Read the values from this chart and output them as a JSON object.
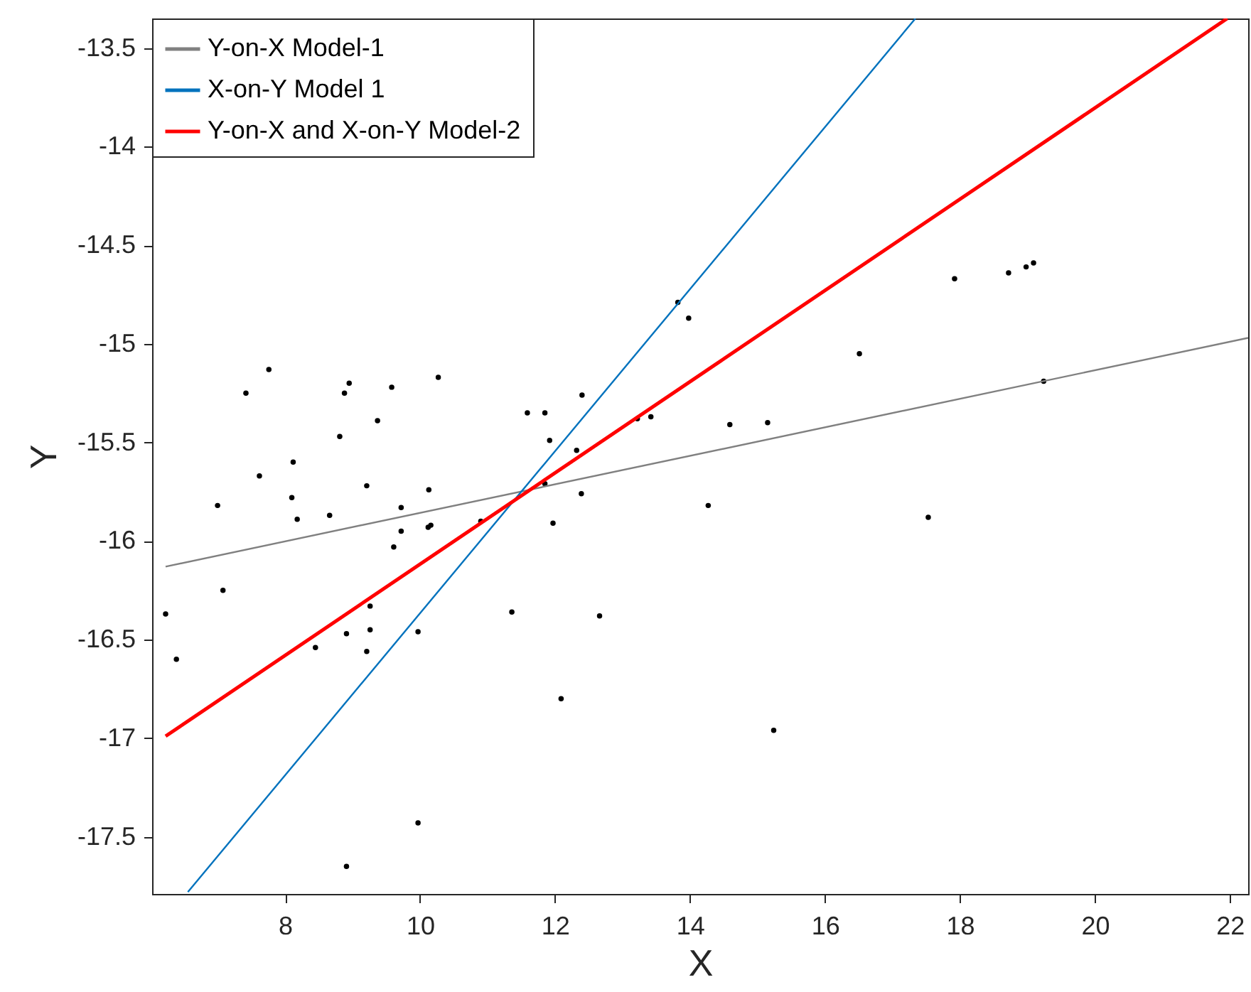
{
  "chart_data": {
    "type": "scatter",
    "xlabel": "X",
    "ylabel": "Y",
    "xlim": [
      6.03,
      22.27
    ],
    "ylim": [
      -17.79,
      -13.35
    ],
    "xticks": [
      8,
      10,
      12,
      14,
      16,
      18,
      20,
      22
    ],
    "yticks": [
      -17.5,
      -17,
      -16.5,
      -16,
      -15.5,
      -15,
      -14.5,
      -14,
      -13.5
    ],
    "legend": "top left",
    "series": [
      {
        "type": "scatter",
        "marker": "circle",
        "color": "#000000",
        "x": [
          6.23,
          6.39,
          7.0,
          7.08,
          7.42,
          7.76,
          7.62,
          8.12,
          8.1,
          8.18,
          8.45,
          8.66,
          8.81,
          8.88,
          8.95,
          8.91,
          9.21,
          9.26,
          9.26,
          9.21,
          9.37,
          9.58,
          9.72,
          9.72,
          9.61,
          9.97,
          10.13,
          10.12,
          10.16,
          10.27,
          10.9,
          11.36,
          11.59,
          11.85,
          11.85,
          11.92,
          11.97,
          12.32,
          12.4,
          12.39,
          12.66,
          13.22,
          13.42,
          13.82,
          13.98,
          14.27,
          14.59,
          15.15,
          16.51,
          17.53,
          17.92,
          18.72,
          18.98,
          19.09,
          19.24,
          12.09,
          9.97,
          8.91,
          15.24
        ],
        "values": [
          -16.37,
          -16.6,
          -15.82,
          -16.25,
          -15.25,
          -15.13,
          -15.67,
          -15.6,
          -15.78,
          -15.89,
          -16.54,
          -15.87,
          -15.47,
          -15.25,
          -15.2,
          -16.47,
          -15.72,
          -16.33,
          -16.45,
          -16.56,
          -15.39,
          -15.22,
          -15.83,
          -15.95,
          -16.03,
          -16.46,
          -15.74,
          -15.93,
          -15.92,
          -15.17,
          -15.9,
          -16.36,
          -15.35,
          -15.35,
          -15.71,
          -15.49,
          -15.91,
          -15.54,
          -15.26,
          -15.76,
          -16.38,
          -15.38,
          -15.37,
          -14.79,
          -14.87,
          -15.82,
          -15.41,
          -15.4,
          -15.05,
          -15.88,
          -14.67,
          -14.64,
          -14.61,
          -14.59,
          -15.19,
          -16.8,
          -17.43,
          -17.65,
          -16.96
        ]
      },
      {
        "type": "line",
        "name": "Y-on-X Model-1",
        "color": "#808080",
        "x": [
          6.23,
          22.27
        ],
        "values": [
          -16.13,
          -14.97
        ]
      },
      {
        "type": "line",
        "name": "X-on-Y Model 1",
        "color": "#0072bd",
        "x": [
          6.56,
          17.34
        ],
        "values": [
          -17.78,
          -13.35
        ]
      },
      {
        "type": "line",
        "name": "Y-on-X and X-on-Y Model-2",
        "color": "#ff0000",
        "x": [
          6.23,
          21.96
        ],
        "values": [
          -16.99,
          -13.35
        ]
      }
    ]
  }
}
